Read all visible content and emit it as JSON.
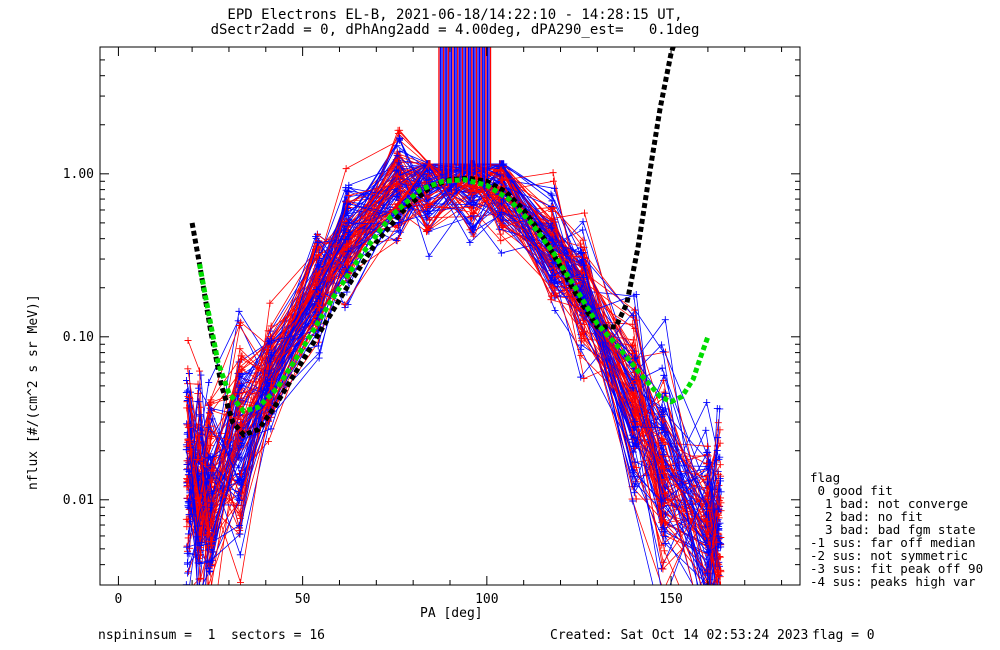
{
  "chart_data": {
    "type": "line",
    "title": "EPD Electrons EL-B, 2021-06-18/14:22:10 - 14:28:15 UT,",
    "subtitle": "dSectr2add = 0, dPhAng2add = 4.00deg, dPA290_est=   0.1deg",
    "xlabel": "PA [deg]",
    "ylabel": "nflux [#/(cm^2 s sr MeV)]",
    "xlim": [
      -5,
      185
    ],
    "ylim": [
      0.003,
      6
    ],
    "yscale": "log",
    "x_ticks": [
      0,
      50,
      100,
      150
    ],
    "y_ticks": [
      {
        "value": 0.01,
        "label": "0.01"
      },
      {
        "value": 0.1,
        "label": "0.10"
      },
      {
        "value": 1.0,
        "label": "1.00"
      }
    ],
    "grid": false,
    "colors": {
      "spin_red": "#ff0000",
      "spin_blue": "#0000ff",
      "fit_black": "#000000",
      "fit_green": "#00dd00"
    },
    "pa_bins": [
      19,
      22,
      25,
      33,
      41,
      54,
      62,
      76,
      84,
      96,
      104,
      118,
      126,
      140,
      148,
      160,
      163
    ],
    "reference_profile": [
      0.014,
      0.011,
      0.012,
      0.025,
      0.06,
      0.2,
      0.4,
      0.82,
      0.9,
      0.9,
      0.82,
      0.35,
      0.18,
      0.04,
      0.014,
      0.006,
      0.007
    ],
    "series": [
      {
        "style": "dashed",
        "color": "fit_black",
        "x": [
          20,
          22,
          25,
          28,
          31,
          34,
          38,
          42,
          48,
          55,
          62,
          70,
          78,
          85,
          90,
          95,
          100,
          105,
          110,
          115,
          120,
          125,
          130,
          135,
          138,
          141,
          144,
          147,
          150,
          152
        ],
        "y": [
          0.5,
          0.28,
          0.11,
          0.05,
          0.03,
          0.025,
          0.027,
          0.036,
          0.06,
          0.11,
          0.2,
          0.38,
          0.62,
          0.84,
          0.92,
          0.94,
          0.9,
          0.78,
          0.6,
          0.42,
          0.27,
          0.17,
          0.115,
          0.115,
          0.16,
          0.35,
          0.95,
          2.5,
          5.5,
          7.5
        ]
      },
      {
        "style": "dashed",
        "color": "fit_green",
        "x": [
          22,
          24,
          27,
          30,
          34,
          38,
          43,
          50,
          58,
          66,
          74,
          82,
          88,
          94,
          100,
          106,
          112,
          118,
          124,
          130,
          136,
          142,
          147,
          150,
          153,
          156,
          158,
          160
        ],
        "y": [
          0.28,
          0.16,
          0.07,
          0.045,
          0.035,
          0.037,
          0.048,
          0.085,
          0.17,
          0.32,
          0.55,
          0.8,
          0.9,
          0.92,
          0.85,
          0.7,
          0.5,
          0.33,
          0.2,
          0.12,
          0.085,
          0.058,
          0.043,
          0.04,
          0.043,
          0.055,
          0.075,
          0.1
        ]
      }
    ],
    "saturated_x_range": [
      87,
      101
    ]
  },
  "legend": {
    "title": "flag",
    "items": [
      " 0 good fit",
      "  1 bad: not converge",
      "  2 bad: no fit",
      "  3 bad: bad fgm state",
      "-1 sus: far off median",
      "-2 sus: not symmetric",
      "-3 sus: fit peak off 90",
      "-4 sus: peaks high var"
    ]
  },
  "footer": {
    "left": "nspininsum =  1  sectors = 16",
    "created": "Created: Sat Oct 14 02:53:24 2023",
    "flag": "flag = 0"
  }
}
